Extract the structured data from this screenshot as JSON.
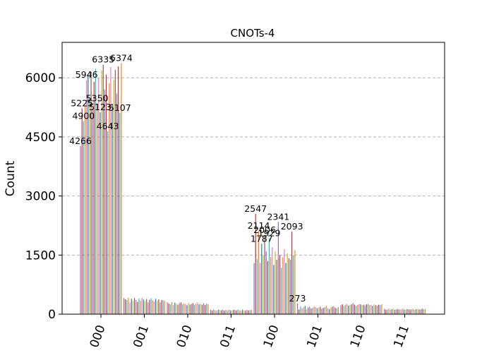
{
  "chart_data": {
    "type": "bar",
    "title": "CNOTs-4",
    "xlabel": "",
    "ylabel": "Count",
    "ylim": [
      0,
      6900
    ],
    "yticks": [
      0,
      1500,
      3000,
      4500,
      6000
    ],
    "grid": "y-dashed",
    "categories": [
      "000",
      "001",
      "010",
      "011",
      "100",
      "101",
      "110",
      "111"
    ],
    "bar_colors": [
      "#9467bd",
      "#d62728",
      "#17becf",
      "#ff7f0e",
      "#e377c2",
      "#1f77b4",
      "#bcbd22",
      "#8c564b"
    ],
    "bars_per_category": 28,
    "groups": [
      {
        "category": "000",
        "values": [
          4266,
          5225,
          4900,
          5300,
          5946,
          6100,
          5480,
          6150,
          5200,
          5900,
          6230,
          5350,
          6000,
          5123,
          6190,
          6335,
          5700,
          6080,
          4643,
          5860,
          6270,
          5350,
          5950,
          6200,
          5600,
          6287,
          5107,
          6374
        ],
        "labels": [
          "4266",
          "5225",
          "4900",
          "5946",
          "5123",
          "4643",
          "6335",
          "5350",
          "5107",
          "6374"
        ]
      },
      {
        "category": "001",
        "values": [
          410,
          380,
          356,
          420,
          300,
          390,
          336,
          405,
          360,
          310,
          395,
          345,
          412,
          370,
          330,
          386,
          300,
          366,
          402,
          356,
          320,
          390,
          340,
          376,
          300,
          360,
          350,
          336
        ],
        "labels": []
      },
      {
        "category": "010",
        "values": [
          300,
          270,
          250,
          310,
          230,
          290,
          260,
          240,
          280,
          300,
          250,
          270,
          260,
          230,
          290,
          246,
          260,
          280,
          240,
          270,
          300,
          250,
          260,
          240,
          280,
          236,
          270,
          250
        ],
        "labels": []
      },
      {
        "category": "011",
        "values": [
          110,
          95,
          120,
          100,
          90,
          115,
          105,
          98,
          112,
          90,
          108,
          96,
          118,
          100,
          92,
          110,
          104,
          95,
          116,
          98,
          90,
          112,
          100,
          94,
          108,
          96,
          102,
          110
        ],
        "labels": []
      },
      {
        "category": "100",
        "values": [
          1300,
          2547,
          1400,
          2114,
          1300,
          1787,
          1500,
          2006,
          1600,
          1350,
          1929,
          1450,
          1700,
          1250,
          1600,
          1380,
          2341,
          1500,
          1180,
          1440,
          1650,
          1300,
          1548,
          1420,
          1380,
          2093,
          1500,
          1623
        ],
        "labels": [
          "2547",
          "2114",
          "2006",
          "1787",
          "1929",
          "2341",
          "2093"
        ]
      },
      {
        "category": "101",
        "values": [
          273,
          120,
          200,
          150,
          180,
          210,
          130,
          170,
          190,
          140,
          160,
          200,
          180,
          150,
          170,
          190,
          140,
          160,
          180,
          210,
          150,
          130,
          170,
          190,
          200,
          160,
          150,
          180
        ],
        "labels": [
          "273"
        ]
      },
      {
        "category": "110",
        "values": [
          230,
          250,
          210,
          240,
          260,
          220,
          230,
          250,
          280,
          240,
          210,
          230,
          260,
          250,
          230,
          240,
          220,
          250,
          260,
          230,
          240,
          210,
          250,
          230,
          220,
          240,
          230,
          250
        ],
        "labels": []
      },
      {
        "category": "111",
        "values": [
          130,
          110,
          120,
          140,
          115,
          125,
          135,
          110,
          120,
          130,
          115,
          125,
          140,
          120,
          110,
          130,
          125,
          115,
          120,
          135,
          110,
          125,
          130,
          120,
          115,
          140,
          125,
          130
        ],
        "labels": []
      }
    ]
  }
}
